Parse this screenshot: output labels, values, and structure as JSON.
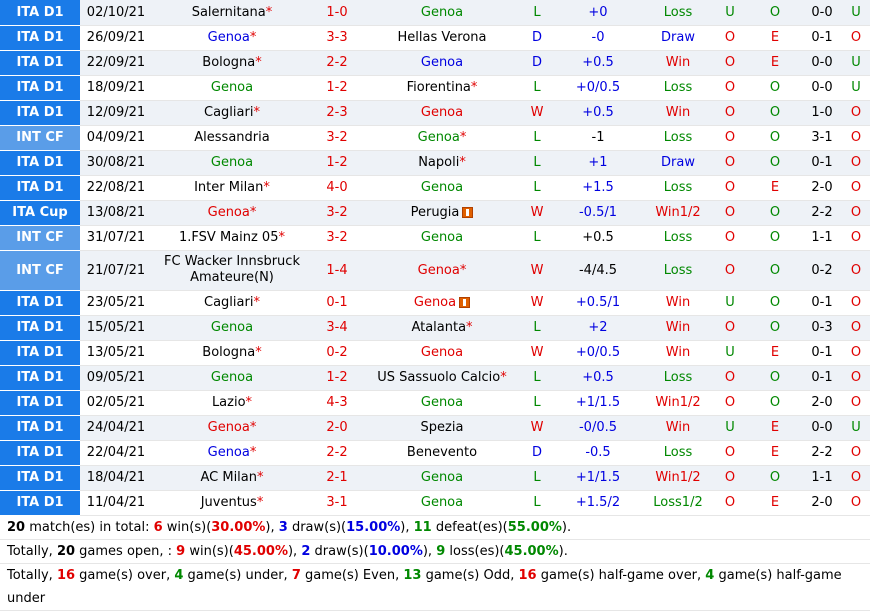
{
  "colors": {
    "league_blue": "#1a7be8",
    "league_lightblue": "#5a9de8",
    "red": "#e00000",
    "blue": "#0000e0",
    "green": "#008800"
  },
  "matches": [
    {
      "league": "ITA D1",
      "lc": "#1a7be8",
      "date": "02/10/21",
      "home": "Salernitana",
      "hmark": "*",
      "hcolor": "#000",
      "score": "1-0",
      "away": "Genoa",
      "amark": "",
      "acolor": "#008800",
      "aflag": false,
      "res": "L",
      "rcolor": "#008800",
      "hc": "+0",
      "hcc": "#0000e0",
      "out": "Loss",
      "ocolor": "#008800",
      "ou": "U",
      "oucolor": "#008800",
      "oe": "O",
      "oecolor": "#008800",
      "ht": "0-0",
      "ht2": "U",
      "ht2color": "#008800"
    },
    {
      "league": "ITA D1",
      "lc": "#1a7be8",
      "date": "26/09/21",
      "home": "Genoa",
      "hmark": "*",
      "hcolor": "#0000e0",
      "score": "3-3",
      "away": "Hellas Verona",
      "amark": "",
      "acolor": "#000",
      "aflag": false,
      "res": "D",
      "rcolor": "#0000e0",
      "hc": "-0",
      "hcc": "#0000e0",
      "out": "Draw",
      "ocolor": "#0000e0",
      "ou": "O",
      "oucolor": "#e00000",
      "oe": "E",
      "oecolor": "#e00000",
      "ht": "0-1",
      "ht2": "O",
      "ht2color": "#e00000"
    },
    {
      "league": "ITA D1",
      "lc": "#1a7be8",
      "date": "22/09/21",
      "home": "Bologna",
      "hmark": "*",
      "hcolor": "#000",
      "score": "2-2",
      "away": "Genoa",
      "amark": "",
      "acolor": "#0000e0",
      "aflag": false,
      "res": "D",
      "rcolor": "#0000e0",
      "hc": "+0.5",
      "hcc": "#0000e0",
      "out": "Win",
      "ocolor": "#e00000",
      "ou": "O",
      "oucolor": "#e00000",
      "oe": "E",
      "oecolor": "#e00000",
      "ht": "0-0",
      "ht2": "U",
      "ht2color": "#008800"
    },
    {
      "league": "ITA D1",
      "lc": "#1a7be8",
      "date": "18/09/21",
      "home": "Genoa",
      "hmark": "",
      "hcolor": "#008800",
      "score": "1-2",
      "away": "Fiorentina",
      "amark": "*",
      "acolor": "#000",
      "aflag": false,
      "res": "L",
      "rcolor": "#008800",
      "hc": "+0/0.5",
      "hcc": "#0000e0",
      "out": "Loss",
      "ocolor": "#008800",
      "ou": "O",
      "oucolor": "#e00000",
      "oe": "O",
      "oecolor": "#008800",
      "ht": "0-0",
      "ht2": "U",
      "ht2color": "#008800"
    },
    {
      "league": "ITA D1",
      "lc": "#1a7be8",
      "date": "12/09/21",
      "home": "Cagliari",
      "hmark": "*",
      "hcolor": "#000",
      "score": "2-3",
      "away": "Genoa",
      "amark": "",
      "acolor": "#e00000",
      "aflag": false,
      "res": "W",
      "rcolor": "#e00000",
      "hc": "+0.5",
      "hcc": "#0000e0",
      "out": "Win",
      "ocolor": "#e00000",
      "ou": "O",
      "oucolor": "#e00000",
      "oe": "O",
      "oecolor": "#008800",
      "ht": "1-0",
      "ht2": "O",
      "ht2color": "#e00000"
    },
    {
      "league": "INT CF",
      "lc": "#5a9de8",
      "date": "04/09/21",
      "home": "Alessandria",
      "hmark": "",
      "hcolor": "#000",
      "score": "3-2",
      "away": "Genoa",
      "amark": "*",
      "acolor": "#008800",
      "aflag": false,
      "res": "L",
      "rcolor": "#008800",
      "hc": "-1",
      "hcc": "#000",
      "out": "Loss",
      "ocolor": "#008800",
      "ou": "O",
      "oucolor": "#e00000",
      "oe": "O",
      "oecolor": "#008800",
      "ht": "3-1",
      "ht2": "O",
      "ht2color": "#e00000"
    },
    {
      "league": "ITA D1",
      "lc": "#1a7be8",
      "date": "30/08/21",
      "home": "Genoa",
      "hmark": "",
      "hcolor": "#008800",
      "score": "1-2",
      "away": "Napoli",
      "amark": "*",
      "acolor": "#000",
      "aflag": false,
      "res": "L",
      "rcolor": "#008800",
      "hc": "+1",
      "hcc": "#0000e0",
      "out": "Draw",
      "ocolor": "#0000e0",
      "ou": "O",
      "oucolor": "#e00000",
      "oe": "O",
      "oecolor": "#008800",
      "ht": "0-1",
      "ht2": "O",
      "ht2color": "#e00000"
    },
    {
      "league": "ITA D1",
      "lc": "#1a7be8",
      "date": "22/08/21",
      "home": "Inter Milan",
      "hmark": "*",
      "hcolor": "#000",
      "score": "4-0",
      "away": "Genoa",
      "amark": "",
      "acolor": "#008800",
      "aflag": false,
      "res": "L",
      "rcolor": "#008800",
      "hc": "+1.5",
      "hcc": "#0000e0",
      "out": "Loss",
      "ocolor": "#008800",
      "ou": "O",
      "oucolor": "#e00000",
      "oe": "E",
      "oecolor": "#e00000",
      "ht": "2-0",
      "ht2": "O",
      "ht2color": "#e00000"
    },
    {
      "league": "ITA Cup",
      "lc": "#1a7be8",
      "date": "13/08/21",
      "home": "Genoa",
      "hmark": "*",
      "hcolor": "#e00000",
      "score": "3-2",
      "away": "Perugia",
      "amark": "",
      "acolor": "#000",
      "aflag": true,
      "res": "W",
      "rcolor": "#e00000",
      "hc": "-0.5/1",
      "hcc": "#0000e0",
      "out": "Win1/2",
      "ocolor": "#e00000",
      "ou": "O",
      "oucolor": "#e00000",
      "oe": "O",
      "oecolor": "#008800",
      "ht": "2-2",
      "ht2": "O",
      "ht2color": "#e00000"
    },
    {
      "league": "INT CF",
      "lc": "#5a9de8",
      "date": "31/07/21",
      "home": "1.FSV Mainz 05",
      "hmark": "*",
      "hcolor": "#000",
      "score": "3-2",
      "away": "Genoa",
      "amark": "",
      "acolor": "#008800",
      "aflag": false,
      "res": "L",
      "rcolor": "#008800",
      "hc": "+0.5",
      "hcc": "#000",
      "out": "Loss",
      "ocolor": "#008800",
      "ou": "O",
      "oucolor": "#e00000",
      "oe": "O",
      "oecolor": "#008800",
      "ht": "1-1",
      "ht2": "O",
      "ht2color": "#e00000"
    },
    {
      "league": "INT CF",
      "lc": "#5a9de8",
      "date": "21/07/21",
      "home": "FC Wacker Innsbruck Amateure(N)",
      "hmark": "",
      "hcolor": "#000",
      "score": "1-4",
      "away": "Genoa",
      "amark": "*",
      "acolor": "#e00000",
      "aflag": false,
      "res": "W",
      "rcolor": "#e00000",
      "hc": "-4/4.5",
      "hcc": "#000",
      "out": "Loss",
      "ocolor": "#008800",
      "ou": "O",
      "oucolor": "#e00000",
      "oe": "O",
      "oecolor": "#008800",
      "ht": "0-2",
      "ht2": "O",
      "ht2color": "#e00000",
      "tall": true
    },
    {
      "league": "ITA D1",
      "lc": "#1a7be8",
      "date": "23/05/21",
      "home": "Cagliari",
      "hmark": "*",
      "hcolor": "#000",
      "score": "0-1",
      "away": "Genoa",
      "amark": "",
      "acolor": "#e00000",
      "aflag": true,
      "res": "W",
      "rcolor": "#e00000",
      "hc": "+0.5/1",
      "hcc": "#0000e0",
      "out": "Win",
      "ocolor": "#e00000",
      "ou": "U",
      "oucolor": "#008800",
      "oe": "O",
      "oecolor": "#008800",
      "ht": "0-1",
      "ht2": "O",
      "ht2color": "#e00000"
    },
    {
      "league": "ITA D1",
      "lc": "#1a7be8",
      "date": "15/05/21",
      "home": "Genoa",
      "hmark": "",
      "hcolor": "#008800",
      "score": "3-4",
      "away": "Atalanta",
      "amark": "*",
      "acolor": "#000",
      "aflag": false,
      "res": "L",
      "rcolor": "#008800",
      "hc": "+2",
      "hcc": "#0000e0",
      "out": "Win",
      "ocolor": "#e00000",
      "ou": "O",
      "oucolor": "#e00000",
      "oe": "O",
      "oecolor": "#008800",
      "ht": "0-3",
      "ht2": "O",
      "ht2color": "#e00000"
    },
    {
      "league": "ITA D1",
      "lc": "#1a7be8",
      "date": "13/05/21",
      "home": "Bologna",
      "hmark": "*",
      "hcolor": "#000",
      "score": "0-2",
      "away": "Genoa",
      "amark": "",
      "acolor": "#e00000",
      "aflag": false,
      "res": "W",
      "rcolor": "#e00000",
      "hc": "+0/0.5",
      "hcc": "#0000e0",
      "out": "Win",
      "ocolor": "#e00000",
      "ou": "U",
      "oucolor": "#008800",
      "oe": "E",
      "oecolor": "#e00000",
      "ht": "0-1",
      "ht2": "O",
      "ht2color": "#e00000"
    },
    {
      "league": "ITA D1",
      "lc": "#1a7be8",
      "date": "09/05/21",
      "home": "Genoa",
      "hmark": "",
      "hcolor": "#008800",
      "score": "1-2",
      "away": "US Sassuolo Calcio",
      "amark": "*",
      "acolor": "#000",
      "aflag": false,
      "res": "L",
      "rcolor": "#008800",
      "hc": "+0.5",
      "hcc": "#0000e0",
      "out": "Loss",
      "ocolor": "#008800",
      "ou": "O",
      "oucolor": "#e00000",
      "oe": "O",
      "oecolor": "#008800",
      "ht": "0-1",
      "ht2": "O",
      "ht2color": "#e00000"
    },
    {
      "league": "ITA D1",
      "lc": "#1a7be8",
      "date": "02/05/21",
      "home": "Lazio",
      "hmark": "*",
      "hcolor": "#000",
      "score": "4-3",
      "away": "Genoa",
      "amark": "",
      "acolor": "#008800",
      "aflag": false,
      "res": "L",
      "rcolor": "#008800",
      "hc": "+1/1.5",
      "hcc": "#0000e0",
      "out": "Win1/2",
      "ocolor": "#e00000",
      "ou": "O",
      "oucolor": "#e00000",
      "oe": "O",
      "oecolor": "#008800",
      "ht": "2-0",
      "ht2": "O",
      "ht2color": "#e00000"
    },
    {
      "league": "ITA D1",
      "lc": "#1a7be8",
      "date": "24/04/21",
      "home": "Genoa",
      "hmark": "*",
      "hcolor": "#e00000",
      "score": "2-0",
      "away": "Spezia",
      "amark": "",
      "acolor": "#000",
      "aflag": false,
      "res": "W",
      "rcolor": "#e00000",
      "hc": "-0/0.5",
      "hcc": "#0000e0",
      "out": "Win",
      "ocolor": "#e00000",
      "ou": "U",
      "oucolor": "#008800",
      "oe": "E",
      "oecolor": "#e00000",
      "ht": "0-0",
      "ht2": "U",
      "ht2color": "#008800"
    },
    {
      "league": "ITA D1",
      "lc": "#1a7be8",
      "date": "22/04/21",
      "home": "Genoa",
      "hmark": "*",
      "hcolor": "#0000e0",
      "score": "2-2",
      "away": "Benevento",
      "amark": "",
      "acolor": "#000",
      "aflag": false,
      "res": "D",
      "rcolor": "#0000e0",
      "hc": "-0.5",
      "hcc": "#0000e0",
      "out": "Loss",
      "ocolor": "#008800",
      "ou": "O",
      "oucolor": "#e00000",
      "oe": "E",
      "oecolor": "#e00000",
      "ht": "2-2",
      "ht2": "O",
      "ht2color": "#e00000"
    },
    {
      "league": "ITA D1",
      "lc": "#1a7be8",
      "date": "18/04/21",
      "home": "AC Milan",
      "hmark": "*",
      "hcolor": "#000",
      "score": "2-1",
      "away": "Genoa",
      "amark": "",
      "acolor": "#008800",
      "aflag": false,
      "res": "L",
      "rcolor": "#008800",
      "hc": "+1/1.5",
      "hcc": "#0000e0",
      "out": "Win1/2",
      "ocolor": "#e00000",
      "ou": "O",
      "oucolor": "#e00000",
      "oe": "O",
      "oecolor": "#008800",
      "ht": "1-1",
      "ht2": "O",
      "ht2color": "#e00000"
    },
    {
      "league": "ITA D1",
      "lc": "#1a7be8",
      "date": "11/04/21",
      "home": "Juventus",
      "hmark": "*",
      "hcolor": "#000",
      "score": "3-1",
      "away": "Genoa",
      "amark": "",
      "acolor": "#008800",
      "aflag": false,
      "res": "L",
      "rcolor": "#008800",
      "hc": "+1.5/2",
      "hcc": "#0000e0",
      "out": "Loss1/2",
      "ocolor": "#008800",
      "ou": "O",
      "oucolor": "#e00000",
      "oe": "E",
      "oecolor": "#e00000",
      "ht": "2-0",
      "ht2": "O",
      "ht2color": "#e00000"
    }
  ],
  "summary": {
    "line1": {
      "total": "20",
      "t1": " match(es) in total: ",
      "wins": "6",
      "t2": " win(s)(",
      "wp": "30.00%",
      "t3": "), ",
      "draws": "3",
      "t4": " draw(s)(",
      "dp": "15.00%",
      "t5": "), ",
      "defeats": "11",
      "t6": " defeat(es)(",
      "lp": "55.00%",
      "t7": ")."
    },
    "line2": {
      "t0": "Totally, ",
      "total": "20",
      "t1": " games open, : ",
      "wins": "9",
      "t2": " win(s)(",
      "wp": "45.00%",
      "t3": "), ",
      "draws": "2",
      "t4": " draw(s)(",
      "dp": "10.00%",
      "t5": "), ",
      "losses": "9",
      "t6": " loss(es)(",
      "lp": "45.00%",
      "t7": ")."
    },
    "line3": {
      "t0": "Totally, ",
      "over": "16",
      "t1": " game(s) over, ",
      "under": "4",
      "t2": " game(s) under, ",
      "even": "7",
      "t3": " game(s) Even, ",
      "odd": "13",
      "t4": " game(s) Odd, ",
      "hover": "16",
      "t5": " game(s) half-game over, ",
      "hunder": "4",
      "t6": " game(s) half-game under"
    }
  }
}
